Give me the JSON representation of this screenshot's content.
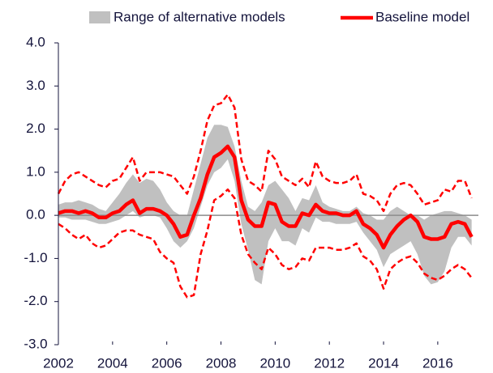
{
  "chart_data": {
    "type": "line",
    "x": [
      2002,
      2002.25,
      2002.5,
      2002.75,
      2003,
      2003.25,
      2003.5,
      2003.75,
      2004,
      2004.25,
      2004.5,
      2004.75,
      2005,
      2005.25,
      2005.5,
      2005.75,
      2006,
      2006.25,
      2006.5,
      2006.75,
      2007,
      2007.25,
      2007.5,
      2007.75,
      2008,
      2008.25,
      2008.5,
      2008.75,
      2009,
      2009.25,
      2009.5,
      2009.75,
      2010,
      2010.25,
      2010.5,
      2010.75,
      2011,
      2011.25,
      2011.5,
      2011.75,
      2012,
      2012.25,
      2012.5,
      2012.75,
      2013,
      2013.25,
      2013.5,
      2013.75,
      2014,
      2014.25,
      2014.5,
      2014.75,
      2015,
      2015.25,
      2015.5,
      2015.75,
      2016,
      2016.25,
      2016.5,
      2016.75,
      2017,
      2017.25
    ],
    "xlim": [
      2002,
      2017.5
    ],
    "xticks": [
      2002,
      2004,
      2006,
      2008,
      2010,
      2012,
      2014,
      2016
    ],
    "ylim": [
      -3,
      4
    ],
    "yticks": [
      {
        "value": 4,
        "label": "4.0"
      },
      {
        "value": 3,
        "label": "3.0"
      },
      {
        "value": 2,
        "label": "2.0"
      },
      {
        "value": 1,
        "label": "1.0"
      },
      {
        "value": 0,
        "label": "0.0"
      },
      {
        "value": -1,
        "label": "-1.0"
      },
      {
        "value": -2,
        "label": "-2.0"
      },
      {
        "value": -3,
        "label": "-3.0"
      }
    ],
    "legend": "top",
    "band": {
      "name": "Range of alternative models",
      "color": "#c0c0c0",
      "upper": [
        0.25,
        0.3,
        0.3,
        0.35,
        0.3,
        0.25,
        0.15,
        0.1,
        0.3,
        0.5,
        0.75,
        0.95,
        0.75,
        0.85,
        0.8,
        0.6,
        0.3,
        0.1,
        0.0,
        0.0,
        0.6,
        1.2,
        1.8,
        2.1,
        2.1,
        2.05,
        1.6,
        0.8,
        0.2,
        0.1,
        0.3,
        0.7,
        0.8,
        0.6,
        0.4,
        0.1,
        0.4,
        0.35,
        0.7,
        0.3,
        0.2,
        0.15,
        0.1,
        0.1,
        0.2,
        0.05,
        0.0,
        -0.1,
        -0.1,
        0.1,
        0.2,
        0.1,
        0.0,
        0.0,
        -0.1,
        0.0,
        0.05,
        0.1,
        0.1,
        0.05,
        0.0,
        -0.1
      ],
      "lower": [
        -0.05,
        -0.05,
        -0.1,
        -0.1,
        -0.1,
        -0.15,
        -0.2,
        -0.2,
        -0.15,
        -0.1,
        0.0,
        0.1,
        -0.05,
        0.0,
        0.0,
        -0.05,
        -0.3,
        -0.6,
        -0.75,
        -0.6,
        -0.3,
        0.2,
        0.7,
        1.0,
        1.1,
        1.3,
        0.8,
        -0.2,
        -0.8,
        -1.5,
        -1.6,
        -0.6,
        -0.3,
        -0.6,
        -0.6,
        -0.7,
        -0.3,
        -0.4,
        -0.05,
        -0.15,
        -0.15,
        -0.2,
        -0.2,
        -0.2,
        -0.15,
        -0.4,
        -0.6,
        -0.8,
        -1.2,
        -0.9,
        -0.8,
        -0.7,
        -0.6,
        -0.9,
        -1.4,
        -1.6,
        -1.55,
        -1.3,
        -0.75,
        -0.5,
        -0.5,
        -0.7
      ]
    },
    "series": [
      {
        "name": "Baseline model",
        "color": "#ff0000",
        "dashed": false,
        "values": [
          0.05,
          0.1,
          0.1,
          0.05,
          0.1,
          0.05,
          -0.05,
          -0.05,
          0.05,
          0.1,
          0.25,
          0.35,
          0.05,
          0.15,
          0.15,
          0.1,
          0.0,
          -0.2,
          -0.5,
          -0.45,
          0.0,
          0.4,
          0.95,
          1.35,
          1.45,
          1.6,
          1.35,
          0.35,
          -0.1,
          -0.25,
          -0.25,
          0.3,
          0.25,
          -0.15,
          -0.25,
          -0.25,
          0.05,
          0.0,
          0.25,
          0.1,
          0.05,
          0.05,
          0.0,
          0.0,
          0.1,
          -0.2,
          -0.3,
          -0.45,
          -0.75,
          -0.45,
          -0.25,
          -0.1,
          0.0,
          -0.15,
          -0.5,
          -0.55,
          -0.55,
          -0.5,
          -0.2,
          -0.15,
          -0.2,
          -0.5
        ]
      },
      {
        "color": "#ff0000",
        "dashed": true,
        "values": [
          0.5,
          0.8,
          0.95,
          1.0,
          0.9,
          0.8,
          0.7,
          0.65,
          0.8,
          0.85,
          1.1,
          1.35,
          0.8,
          1.0,
          1.0,
          1.0,
          0.95,
          0.9,
          0.7,
          0.5,
          0.9,
          1.5,
          2.2,
          2.55,
          2.6,
          2.8,
          2.5,
          1.3,
          0.8,
          0.7,
          0.55,
          1.5,
          1.3,
          0.9,
          0.8,
          0.7,
          0.85,
          0.65,
          1.25,
          0.9,
          0.8,
          0.75,
          0.75,
          0.8,
          0.95,
          0.5,
          0.45,
          0.35,
          0.1,
          0.5,
          0.7,
          0.75,
          0.7,
          0.5,
          0.25,
          0.3,
          0.35,
          0.6,
          0.55,
          0.8,
          0.8,
          0.4
        ]
      },
      {
        "color": "#ff0000",
        "dashed": true,
        "values": [
          -0.2,
          -0.3,
          -0.45,
          -0.55,
          -0.45,
          -0.65,
          -0.75,
          -0.7,
          -0.55,
          -0.4,
          -0.35,
          -0.35,
          -0.45,
          -0.5,
          -0.55,
          -0.85,
          -1.0,
          -1.1,
          -1.65,
          -1.9,
          -1.85,
          -0.9,
          -0.35,
          0.35,
          0.45,
          0.6,
          0.4,
          -0.45,
          -0.9,
          -1.1,
          -1.25,
          -0.75,
          -0.9,
          -1.15,
          -1.25,
          -1.2,
          -1.0,
          -1.05,
          -0.75,
          -0.75,
          -0.75,
          -0.8,
          -0.8,
          -0.75,
          -0.65,
          -0.95,
          -1.05,
          -1.25,
          -1.7,
          -1.25,
          -1.1,
          -1.0,
          -0.95,
          -1.1,
          -1.35,
          -1.45,
          -1.5,
          -1.4,
          -1.25,
          -1.15,
          -1.25,
          -1.45
        ]
      }
    ]
  }
}
